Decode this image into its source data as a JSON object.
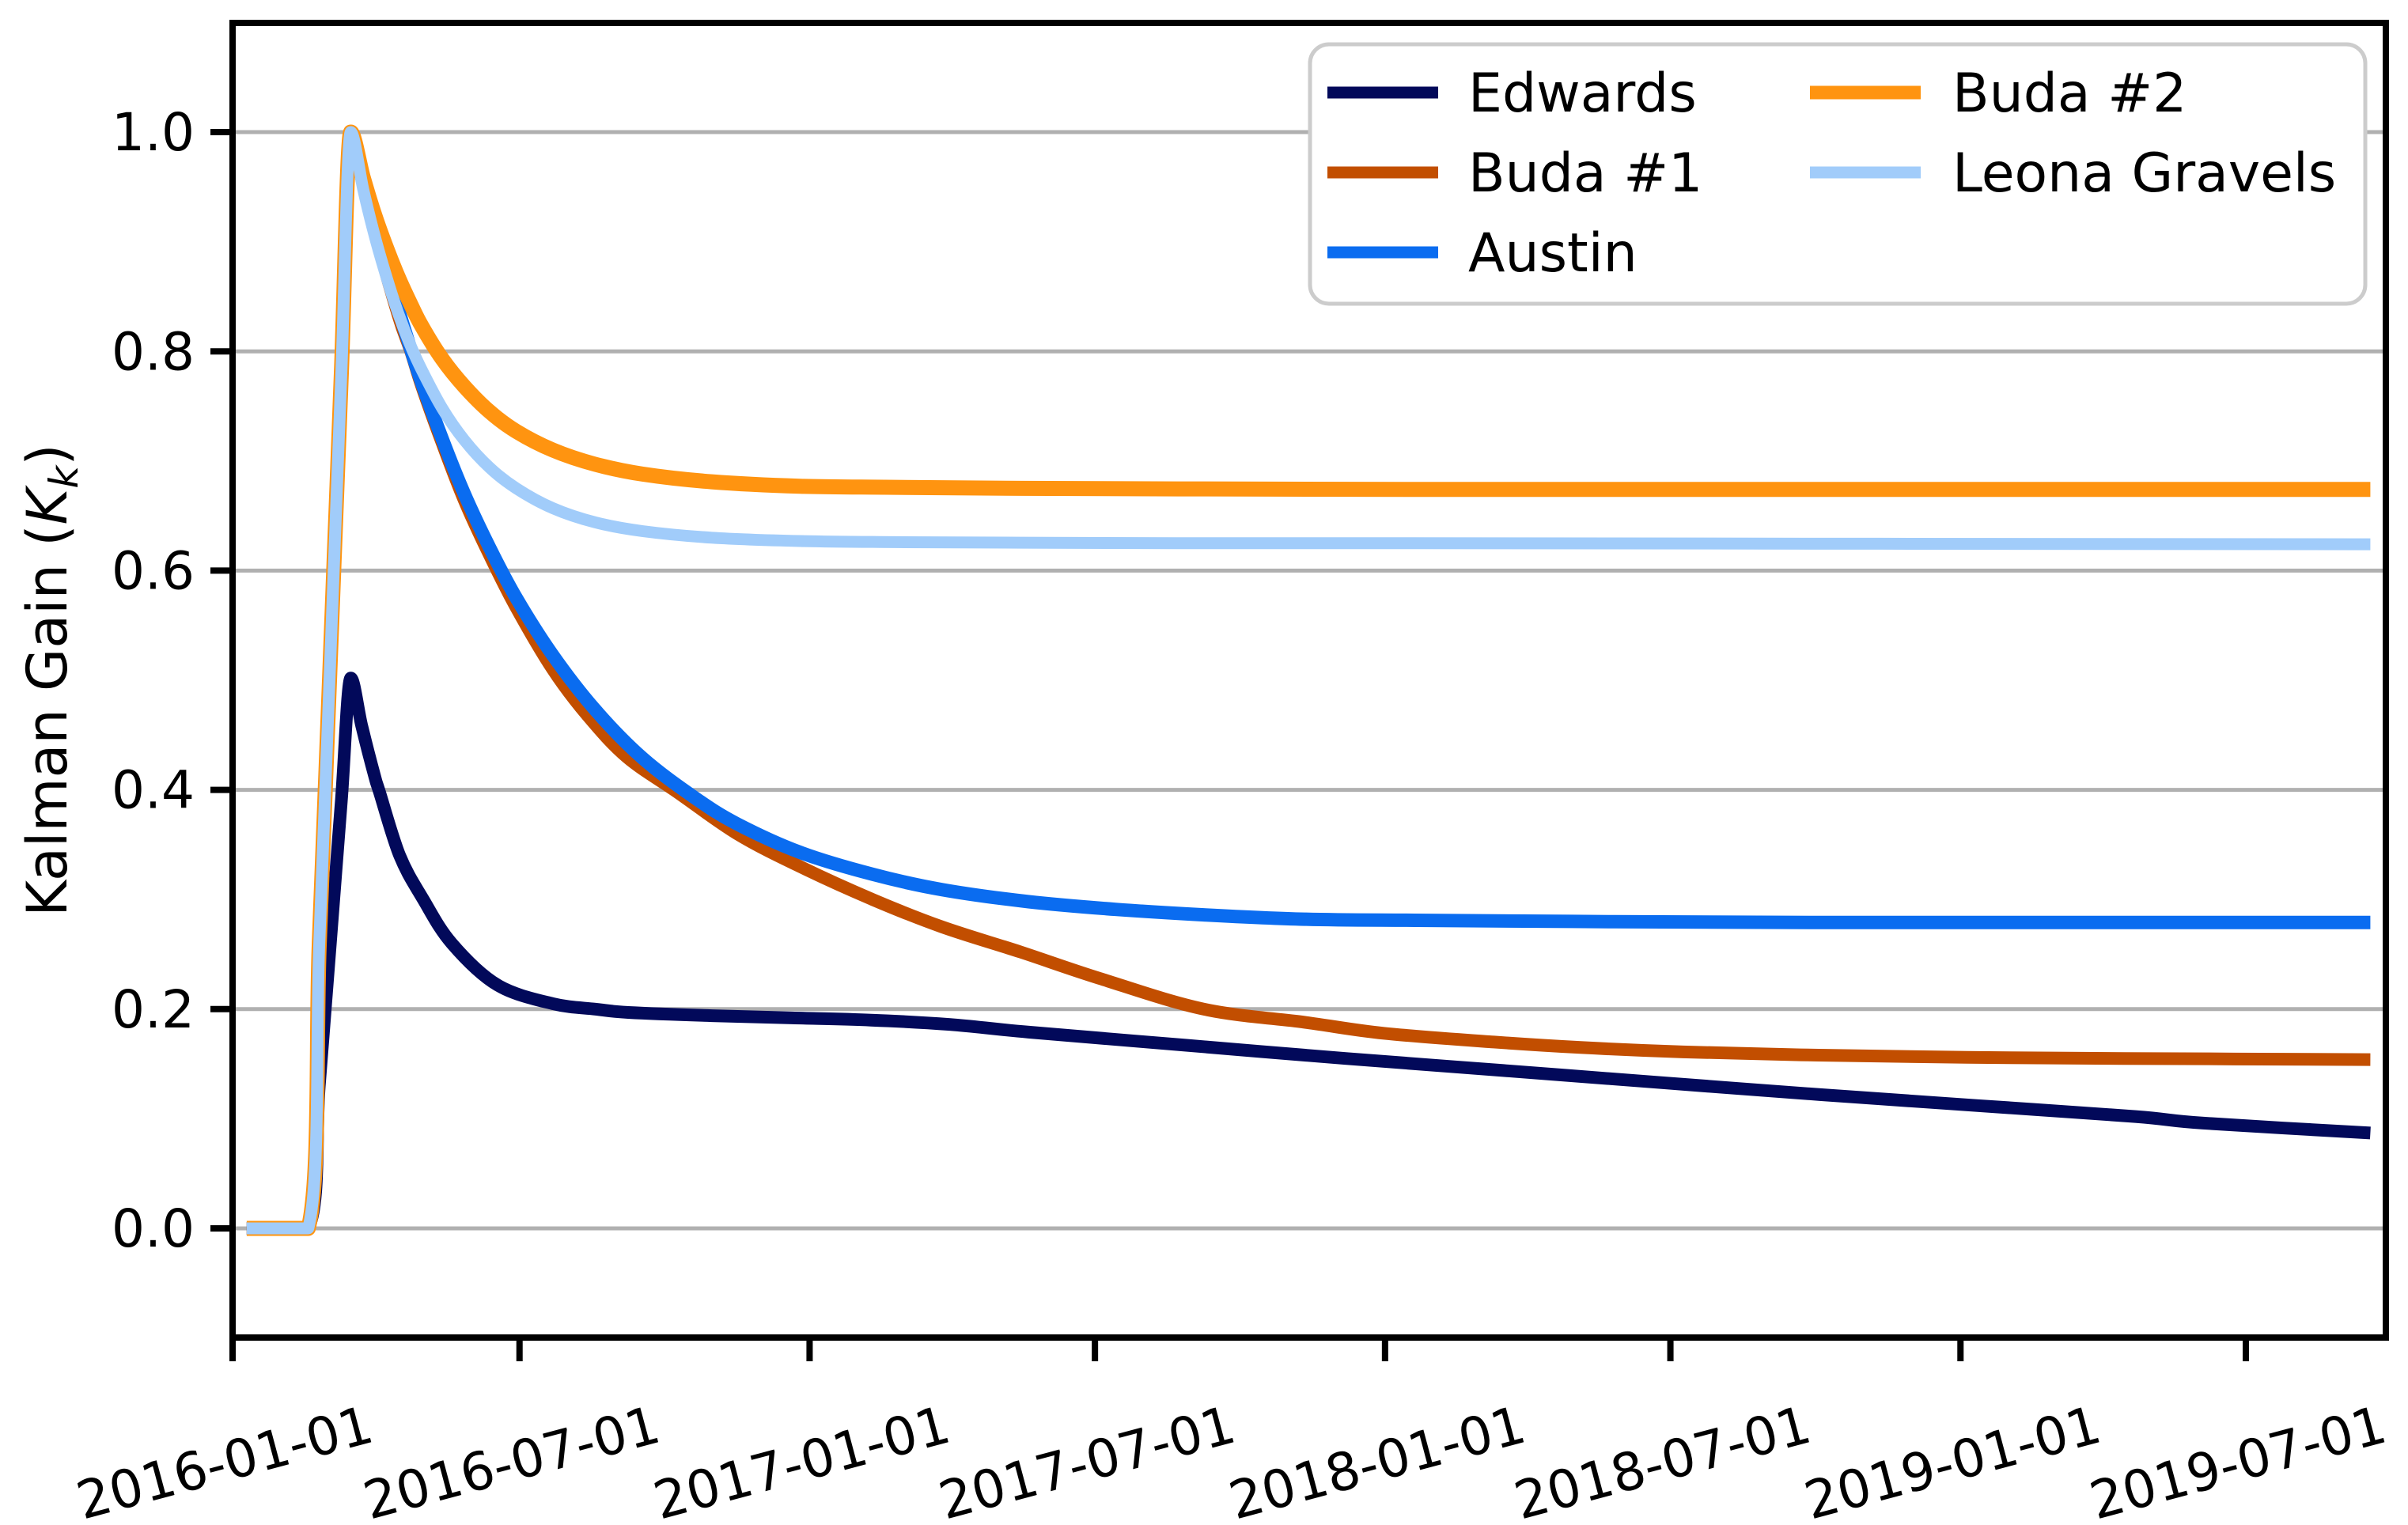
{
  "figure": {
    "background": "#ffffff",
    "spine_color": "#000000",
    "tick_color": "#000000"
  },
  "chart_data": {
    "type": "line",
    "title": "",
    "xlabel": "",
    "ylabel": "Kalman Gain (K_k)",
    "ylabel_parts": {
      "prefix": "Kalman Gain (",
      "var": "K",
      "sub": "k",
      "suffix": ")"
    },
    "xlim": [
      "2016-01-01",
      "2019-09-27"
    ],
    "ylim": [
      -0.1,
      1.1
    ],
    "x_ticks": [
      "2016-01-01",
      "2016-07-01",
      "2017-01-01",
      "2017-07-01",
      "2018-01-01",
      "2018-07-01",
      "2019-01-01",
      "2019-07-01"
    ],
    "x_tick_rotation_deg": -15,
    "y_ticks": [
      "0.0",
      "0.2",
      "0.4",
      "0.6",
      "0.8",
      "1.0"
    ],
    "grid": {
      "axis": "y",
      "color": "#b0b0b0",
      "on": true
    },
    "legend": {
      "location": "upper right",
      "ncol": 2,
      "entries": [
        "Edwards",
        "Buda #1",
        "Austin",
        "Buda #2",
        "Leona Gravels"
      ],
      "border_color": "#cccccc",
      "background": "#ffffff"
    },
    "series": [
      {
        "name": "Edwards",
        "color": "#02095a",
        "line_width": 16,
        "points": [
          [
            "2016-01-10",
            0.0
          ],
          [
            "2016-02-18",
            0.0
          ],
          [
            "2016-02-25",
            0.13
          ],
          [
            "2016-03-03",
            0.26
          ],
          [
            "2016-03-10",
            0.39
          ],
          [
            "2016-03-16",
            0.502
          ],
          [
            "2016-03-23",
            0.458
          ],
          [
            "2016-03-31",
            0.413
          ],
          [
            "2016-04-03",
            0.399
          ],
          [
            "2016-04-16",
            0.34
          ],
          [
            "2016-05-01",
            0.3
          ],
          [
            "2016-05-19",
            0.26
          ],
          [
            "2016-06-17",
            0.222
          ],
          [
            "2016-07-22",
            0.205
          ],
          [
            "2016-08-18",
            0.2
          ],
          [
            "2016-09-08",
            0.197
          ],
          [
            "2016-10-31",
            0.194
          ],
          [
            "2016-12-21",
            0.192
          ],
          [
            "2017-02-09",
            0.19
          ],
          [
            "2017-03-31",
            0.186
          ],
          [
            "2017-05-20",
            0.179
          ],
          [
            "2017-08-28",
            0.167
          ],
          [
            "2017-12-07",
            0.155
          ],
          [
            "2018-03-17",
            0.144
          ],
          [
            "2018-06-25",
            0.133
          ],
          [
            "2018-10-04",
            0.122
          ],
          [
            "2019-01-12",
            0.112
          ],
          [
            "2019-04-22",
            0.102
          ],
          [
            "2019-06-04",
            0.096
          ],
          [
            "2019-09-18",
            0.087
          ]
        ]
      },
      {
        "name": "Buda #1",
        "color": "#c24e00",
        "line_width": 16,
        "points": [
          [
            "2016-01-10",
            0.0
          ],
          [
            "2016-02-18",
            0.0
          ],
          [
            "2016-02-25",
            0.26
          ],
          [
            "2016-03-03",
            0.52
          ],
          [
            "2016-03-10",
            0.78
          ],
          [
            "2016-03-16",
            1.0
          ],
          [
            "2016-03-31",
            0.91
          ],
          [
            "2016-04-15",
            0.833
          ],
          [
            "2016-04-23",
            0.8
          ],
          [
            "2016-04-30",
            0.768
          ],
          [
            "2016-05-13",
            0.716
          ],
          [
            "2016-05-27",
            0.664
          ],
          [
            "2016-06-12",
            0.614
          ],
          [
            "2016-06-29",
            0.566
          ],
          [
            "2016-07-22",
            0.51
          ],
          [
            "2016-08-13",
            0.468
          ],
          [
            "2016-09-07",
            0.43
          ],
          [
            "2016-10-09",
            0.398
          ],
          [
            "2016-11-16",
            0.36
          ],
          [
            "2016-12-26",
            0.33
          ],
          [
            "2017-02-10",
            0.3
          ],
          [
            "2017-03-26",
            0.275
          ],
          [
            "2017-05-15",
            0.252
          ],
          [
            "2017-07-04",
            0.228
          ],
          [
            "2017-09-08",
            0.2
          ],
          [
            "2017-11-11",
            0.188
          ],
          [
            "2017-12-31",
            0.178
          ],
          [
            "2018-03-11",
            0.17
          ],
          [
            "2018-05-05",
            0.165
          ],
          [
            "2018-07-09",
            0.161
          ],
          [
            "2018-10-03",
            0.158
          ],
          [
            "2019-01-05",
            0.156
          ],
          [
            "2019-04-15",
            0.155
          ],
          [
            "2019-09-18",
            0.154
          ]
        ]
      },
      {
        "name": "Austin",
        "color": "#0a6cf0",
        "line_width": 17,
        "points": [
          [
            "2016-01-10",
            0.0
          ],
          [
            "2016-02-18",
            0.0
          ],
          [
            "2016-02-25",
            0.26
          ],
          [
            "2016-03-03",
            0.52
          ],
          [
            "2016-03-10",
            0.78
          ],
          [
            "2016-03-16",
            1.0
          ],
          [
            "2016-03-24",
            0.952
          ],
          [
            "2016-03-31",
            0.914
          ],
          [
            "2016-04-08",
            0.872
          ],
          [
            "2016-04-15",
            0.839
          ],
          [
            "2016-04-23",
            0.802
          ],
          [
            "2016-04-30",
            0.771
          ],
          [
            "2016-05-13",
            0.72
          ],
          [
            "2016-05-27",
            0.67
          ],
          [
            "2016-06-12",
            0.621
          ],
          [
            "2016-06-29",
            0.575
          ],
          [
            "2016-07-22",
            0.523
          ],
          [
            "2016-08-18",
            0.473
          ],
          [
            "2016-09-17",
            0.429
          ],
          [
            "2016-10-20",
            0.393
          ],
          [
            "2016-11-16",
            0.369
          ],
          [
            "2016-12-26",
            0.343
          ],
          [
            "2017-02-10",
            0.323
          ],
          [
            "2017-03-26",
            0.309
          ],
          [
            "2017-05-20",
            0.298
          ],
          [
            "2017-07-14",
            0.291
          ],
          [
            "2017-09-08",
            0.286
          ],
          [
            "2017-11-11",
            0.282
          ],
          [
            "2018-01-20",
            0.281
          ],
          [
            "2018-04-30",
            0.28
          ],
          [
            "2018-09-27",
            0.279
          ],
          [
            "2019-09-18",
            0.279
          ]
        ]
      },
      {
        "name": "Buda #2",
        "color": "#ff9410",
        "line_width": 19,
        "points": [
          [
            "2016-01-10",
            0.0
          ],
          [
            "2016-02-18",
            0.0
          ],
          [
            "2016-02-25",
            0.26
          ],
          [
            "2016-03-03",
            0.52
          ],
          [
            "2016-03-10",
            0.78
          ],
          [
            "2016-03-16",
            1.0
          ],
          [
            "2016-03-24",
            0.958
          ],
          [
            "2016-03-31",
            0.925
          ],
          [
            "2016-04-08",
            0.893
          ],
          [
            "2016-04-15",
            0.868
          ],
          [
            "2016-04-23",
            0.843
          ],
          [
            "2016-04-30",
            0.823
          ],
          [
            "2016-05-13",
            0.793
          ],
          [
            "2016-05-27",
            0.768
          ],
          [
            "2016-06-12",
            0.745
          ],
          [
            "2016-06-29",
            0.727
          ],
          [
            "2016-07-22",
            0.71
          ],
          [
            "2016-08-18",
            0.697
          ],
          [
            "2016-09-17",
            0.688
          ],
          [
            "2016-10-31",
            0.681
          ],
          [
            "2016-12-26",
            0.677
          ],
          [
            "2017-02-24",
            0.676
          ],
          [
            "2017-05-15",
            0.675
          ],
          [
            "2017-08-23",
            0.6745
          ],
          [
            "2018-01-20",
            0.674
          ],
          [
            "2019-09-18",
            0.674
          ]
        ]
      },
      {
        "name": "Leona Gravels",
        "color": "#a1ccfa",
        "line_width": 15,
        "points": [
          [
            "2016-01-10",
            0.0
          ],
          [
            "2016-02-18",
            0.0
          ],
          [
            "2016-02-25",
            0.26
          ],
          [
            "2016-03-03",
            0.52
          ],
          [
            "2016-03-10",
            0.78
          ],
          [
            "2016-03-16",
            1.0
          ],
          [
            "2016-03-24",
            0.947
          ],
          [
            "2016-03-31",
            0.906
          ],
          [
            "2016-04-08",
            0.866
          ],
          [
            "2016-04-15",
            0.835
          ],
          [
            "2016-04-23",
            0.805
          ],
          [
            "2016-04-30",
            0.783
          ],
          [
            "2016-05-13",
            0.748
          ],
          [
            "2016-05-27",
            0.719
          ],
          [
            "2016-06-12",
            0.694
          ],
          [
            "2016-06-29",
            0.675
          ],
          [
            "2016-07-22",
            0.657
          ],
          [
            "2016-08-18",
            0.644
          ],
          [
            "2016-09-17",
            0.636
          ],
          [
            "2016-10-31",
            0.63
          ],
          [
            "2016-12-26",
            0.627
          ],
          [
            "2017-02-24",
            0.626
          ],
          [
            "2017-05-15",
            0.6255
          ],
          [
            "2017-08-23",
            0.625
          ],
          [
            "2018-01-20",
            0.625
          ],
          [
            "2019-09-18",
            0.624
          ]
        ]
      }
    ]
  }
}
